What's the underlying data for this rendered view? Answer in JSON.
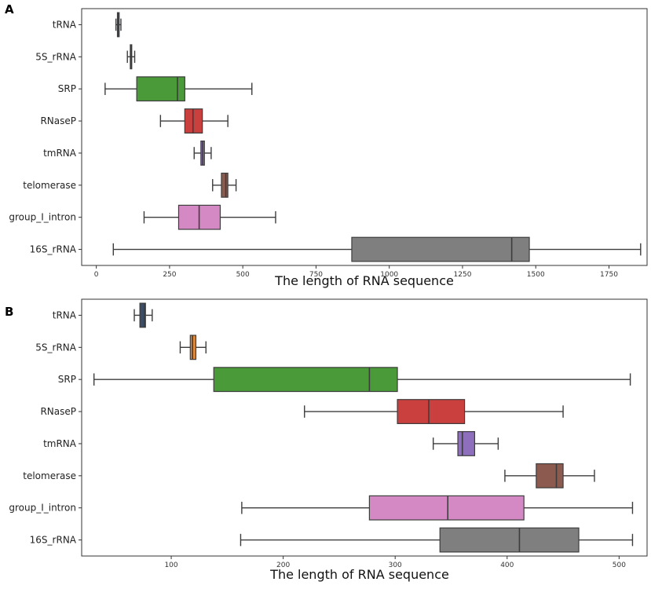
{
  "chart_data": [
    {
      "panel": "A",
      "type": "boxplot",
      "orientation": "horizontal",
      "xlabel": "The length of RNA sequence",
      "xlim": [
        -50,
        1880
      ],
      "xticks": [
        0,
        250,
        500,
        750,
        1000,
        1250,
        1500,
        1750
      ],
      "categories": [
        "tRNA",
        "5S_rRNA",
        "SRP",
        "RNaseP",
        "tmRNA",
        "telomerase",
        "group_I_intron",
        "16S_rRNA"
      ],
      "colors": [
        "#3b4e66",
        "#e08a3c",
        "#4a9a3a",
        "#c9403f",
        "#8e6fbd",
        "#8c5a4e",
        "#d589c4",
        "#7f7f7f"
      ],
      "boxes": [
        {
          "whislo": 67,
          "q1": 72,
          "med": 76,
          "q3": 78,
          "whishi": 84
        },
        {
          "whislo": 106,
          "q1": 116,
          "med": 119,
          "q3": 121,
          "whishi": 131
        },
        {
          "whislo": 30,
          "q1": 138,
          "med": 277,
          "q3": 302,
          "whishi": 531
        },
        {
          "whislo": 219,
          "q1": 302,
          "med": 330,
          "q3": 362,
          "whishi": 449
        },
        {
          "whislo": 334,
          "q1": 357,
          "med": 363,
          "q3": 369,
          "whishi": 392
        },
        {
          "whislo": 397,
          "q1": 427,
          "med": 442,
          "q3": 449,
          "whishi": 477
        },
        {
          "whislo": 163,
          "q1": 281,
          "med": 351,
          "q3": 423,
          "whishi": 612
        },
        {
          "whislo": 58,
          "q1": 872,
          "med": 1418,
          "q3": 1478,
          "whishi": 1858
        }
      ]
    },
    {
      "panel": "B",
      "type": "boxplot",
      "orientation": "horizontal",
      "xlabel": "The length of RNA sequence",
      "xlim": [
        20,
        525
      ],
      "xticks": [
        100,
        200,
        300,
        400,
        500
      ],
      "categories": [
        "tRNA",
        "5S_rRNA",
        "SRP",
        "RNaseP",
        "tmRNA",
        "telomerase",
        "group_I_intron",
        "16S_rRNA"
      ],
      "colors": [
        "#3b4e66",
        "#e08a3c",
        "#4a9a3a",
        "#c9403f",
        "#8e6fbd",
        "#8c5a4e",
        "#d589c4",
        "#7f7f7f"
      ],
      "boxes": [
        {
          "whislo": 67,
          "q1": 72,
          "med": 76,
          "q3": 77,
          "whishi": 83
        },
        {
          "whislo": 108,
          "q1": 117,
          "med": 119,
          "q3": 122,
          "whishi": 131
        },
        {
          "whislo": 31,
          "q1": 138,
          "med": 277,
          "q3": 302,
          "whishi": 510
        },
        {
          "whislo": 219,
          "q1": 302,
          "med": 330,
          "q3": 362,
          "whishi": 450
        },
        {
          "whislo": 334,
          "q1": 356,
          "med": 360,
          "q3": 371,
          "whishi": 392
        },
        {
          "whislo": 398,
          "q1": 426,
          "med": 444,
          "q3": 450,
          "whishi": 478
        },
        {
          "whislo": 163,
          "q1": 277,
          "med": 347,
          "q3": 415,
          "whishi": 512
        },
        {
          "whislo": 162,
          "q1": 340,
          "med": 411,
          "q3": 464,
          "whishi": 512
        }
      ]
    }
  ]
}
